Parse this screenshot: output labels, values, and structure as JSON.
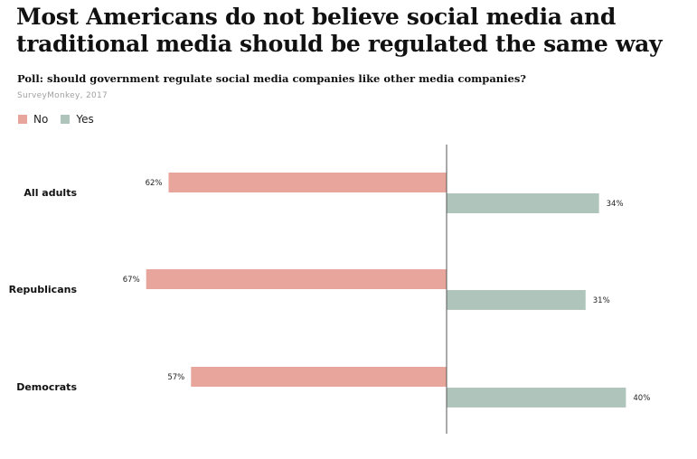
{
  "title": "Most Americans do not believe social media and traditional media should be regulated the same way",
  "subtitle": "Poll: should government regulate social media companies like other media companies?",
  "source": "SurveyMonkey, 2017",
  "legend": {
    "no_label": "No",
    "yes_label": "Yes"
  },
  "colors": {
    "no": "#e8a59c",
    "yes": "#afc5bb",
    "axis": "#555555"
  },
  "chart_data": {
    "type": "bar",
    "orientation": "horizontal-diverging",
    "categories": [
      "All adults",
      "Republicans",
      "Democrats"
    ],
    "series": [
      {
        "name": "No",
        "values": [
          62,
          67,
          57
        ],
        "labels": [
          "62%",
          "67%",
          "57%"
        ]
      },
      {
        "name": "Yes",
        "values": [
          34,
          31,
          40
        ],
        "labels": [
          "34%",
          "31%",
          "40%"
        ]
      }
    ],
    "unit": "%",
    "legend_position": "top-left",
    "grid": false
  }
}
